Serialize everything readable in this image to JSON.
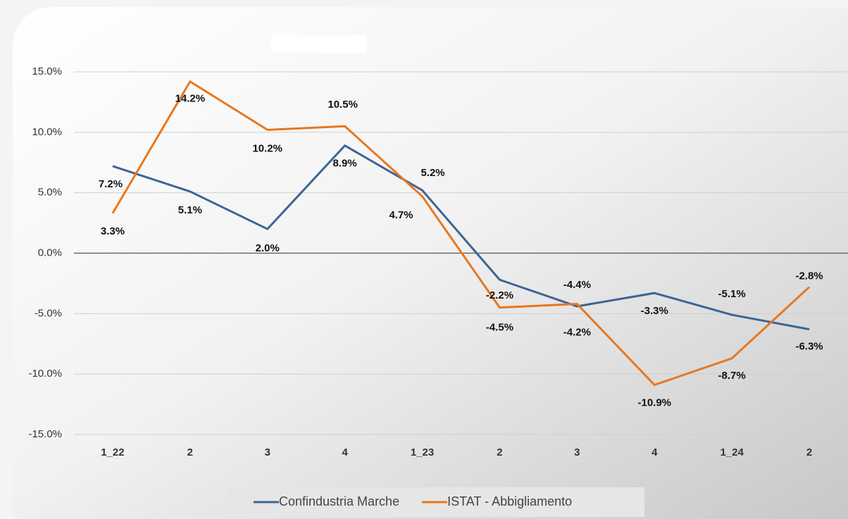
{
  "chart_data": {
    "type": "line",
    "categories": [
      "1_22",
      "2",
      "3",
      "4",
      "1_23",
      "2",
      "3",
      "4",
      "1_24",
      "2"
    ],
    "series": [
      {
        "name": "Confindustria Marche",
        "color": "#3d6494",
        "values": [
          7.2,
          5.1,
          2.0,
          8.9,
          5.2,
          -2.2,
          -4.4,
          -3.3,
          -5.1,
          -6.3
        ],
        "value_labels": [
          "7.2%",
          "5.1%",
          "2.0%",
          "8.9%",
          "5.2%",
          "-2.2%",
          "-4.4%",
          "-3.3%",
          "-5.1%",
          "-6.3%"
        ]
      },
      {
        "name": "ISTAT - Abbigliamento",
        "color": "#e8771e",
        "values": [
          3.3,
          14.2,
          10.2,
          10.5,
          4.7,
          -4.5,
          -4.2,
          -10.9,
          -8.7,
          -2.8
        ],
        "value_labels": [
          "3.3%",
          "14.2%",
          "10.2%",
          "10.5%",
          "4.7%",
          "-4.5%",
          "-4.2%",
          "-10.9%",
          "-8.7%",
          "-2.8%"
        ]
      }
    ],
    "ylim": [
      -15,
      15
    ],
    "yticks": [
      {
        "value": -15,
        "label": "-15.0%"
      },
      {
        "value": -10,
        "label": "-10.0%"
      },
      {
        "value": -5,
        "label": "-5.0%"
      },
      {
        "value": 0,
        "label": "0.0%"
      },
      {
        "value": 5,
        "label": "5.0%"
      },
      {
        "value": 10,
        "label": "10.0%"
      },
      {
        "value": 15,
        "label": "15.0%"
      }
    ],
    "grid": true,
    "legend": "bottom"
  }
}
